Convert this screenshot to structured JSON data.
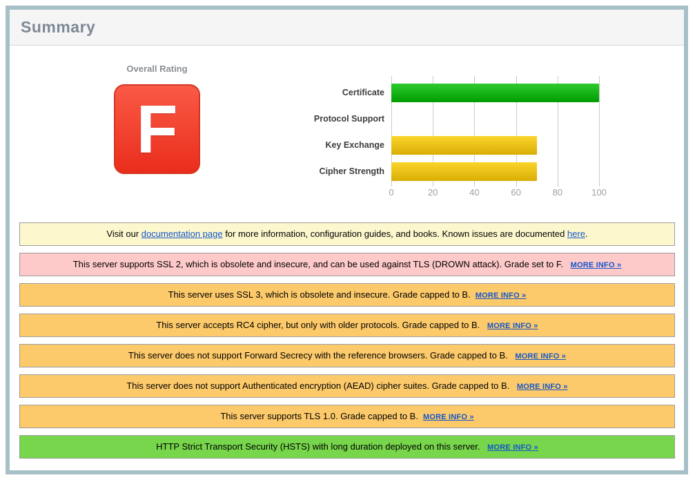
{
  "page": {
    "title": "Summary"
  },
  "overall_rating": {
    "label": "Overall Rating",
    "grade": "F",
    "badge_color_top": "#fa5a46",
    "badge_color_bottom": "#ea2d1c",
    "badge_border_color": "#d43523"
  },
  "chart_data": {
    "type": "bar",
    "orientation": "horizontal",
    "title": "",
    "xlabel": "",
    "ylabel": "",
    "categories": [
      "Certificate",
      "Protocol Support",
      "Key Exchange",
      "Cipher Strength"
    ],
    "values": [
      100,
      0,
      70,
      70
    ],
    "bar_gradients": [
      [
        "#2dcb2d",
        "#009c00"
      ],
      null,
      [
        "#fbd42c",
        "#d9ae04"
      ],
      [
        "#fbd42c",
        "#d9ae04"
      ]
    ],
    "xlim": [
      0,
      100
    ],
    "xticks": [
      0,
      20,
      40,
      60,
      80,
      100
    ],
    "grid": true,
    "gridline_color": "#c9c9c9",
    "legend": null
  },
  "messages": [
    {
      "name": "documentation-note",
      "bg": "#fdf7cd",
      "parts": [
        {
          "text": "Visit our "
        },
        {
          "text": "documentation page",
          "link": true
        },
        {
          "text": " for more information, configuration guides, and books. Known issues are documented "
        },
        {
          "text": "here",
          "link": true
        },
        {
          "text": "."
        }
      ]
    },
    {
      "name": "ssl2-warning",
      "bg": "#fec9c9",
      "parts": [
        {
          "text": "This server supports SSL 2, which is obsolete and insecure, and can be used against TLS (DROWN attack). Grade set to F. "
        },
        {
          "text": "MORE INFO »",
          "link": true,
          "more": true
        }
      ]
    },
    {
      "name": "ssl3-warning",
      "bg": "#fdca6b",
      "parts": [
        {
          "text": "This server uses SSL 3, which is obsolete and insecure. Grade capped to B."
        },
        {
          "text": "MORE INFO »",
          "link": true,
          "more": true
        }
      ]
    },
    {
      "name": "rc4-warning",
      "bg": "#fdca6b",
      "parts": [
        {
          "text": "This server accepts RC4 cipher, but only with older protocols. Grade capped to B. "
        },
        {
          "text": "MORE INFO »",
          "link": true,
          "more": true
        }
      ]
    },
    {
      "name": "forward-secrecy-warning",
      "bg": "#fdca6b",
      "parts": [
        {
          "text": "This server does not support Forward Secrecy with the reference browsers. Grade capped to B. "
        },
        {
          "text": "MORE INFO »",
          "link": true,
          "more": true
        }
      ]
    },
    {
      "name": "aead-warning",
      "bg": "#fdca6b",
      "parts": [
        {
          "text": "This server does not support Authenticated encryption (AEAD) cipher suites. Grade capped to B. "
        },
        {
          "text": "MORE INFO »",
          "link": true,
          "more": true
        }
      ]
    },
    {
      "name": "tls10-warning",
      "bg": "#fdca6b",
      "parts": [
        {
          "text": "This server supports TLS 1.0. Grade capped to B."
        },
        {
          "text": "MORE INFO »",
          "link": true,
          "more": true
        }
      ]
    },
    {
      "name": "hsts-notice",
      "bg": "#77d64c",
      "parts": [
        {
          "text": "HTTP Strict Transport Security (HSTS) with long duration deployed on this server. "
        },
        {
          "text": "MORE INFO »",
          "link": true,
          "more": true
        }
      ]
    }
  ]
}
